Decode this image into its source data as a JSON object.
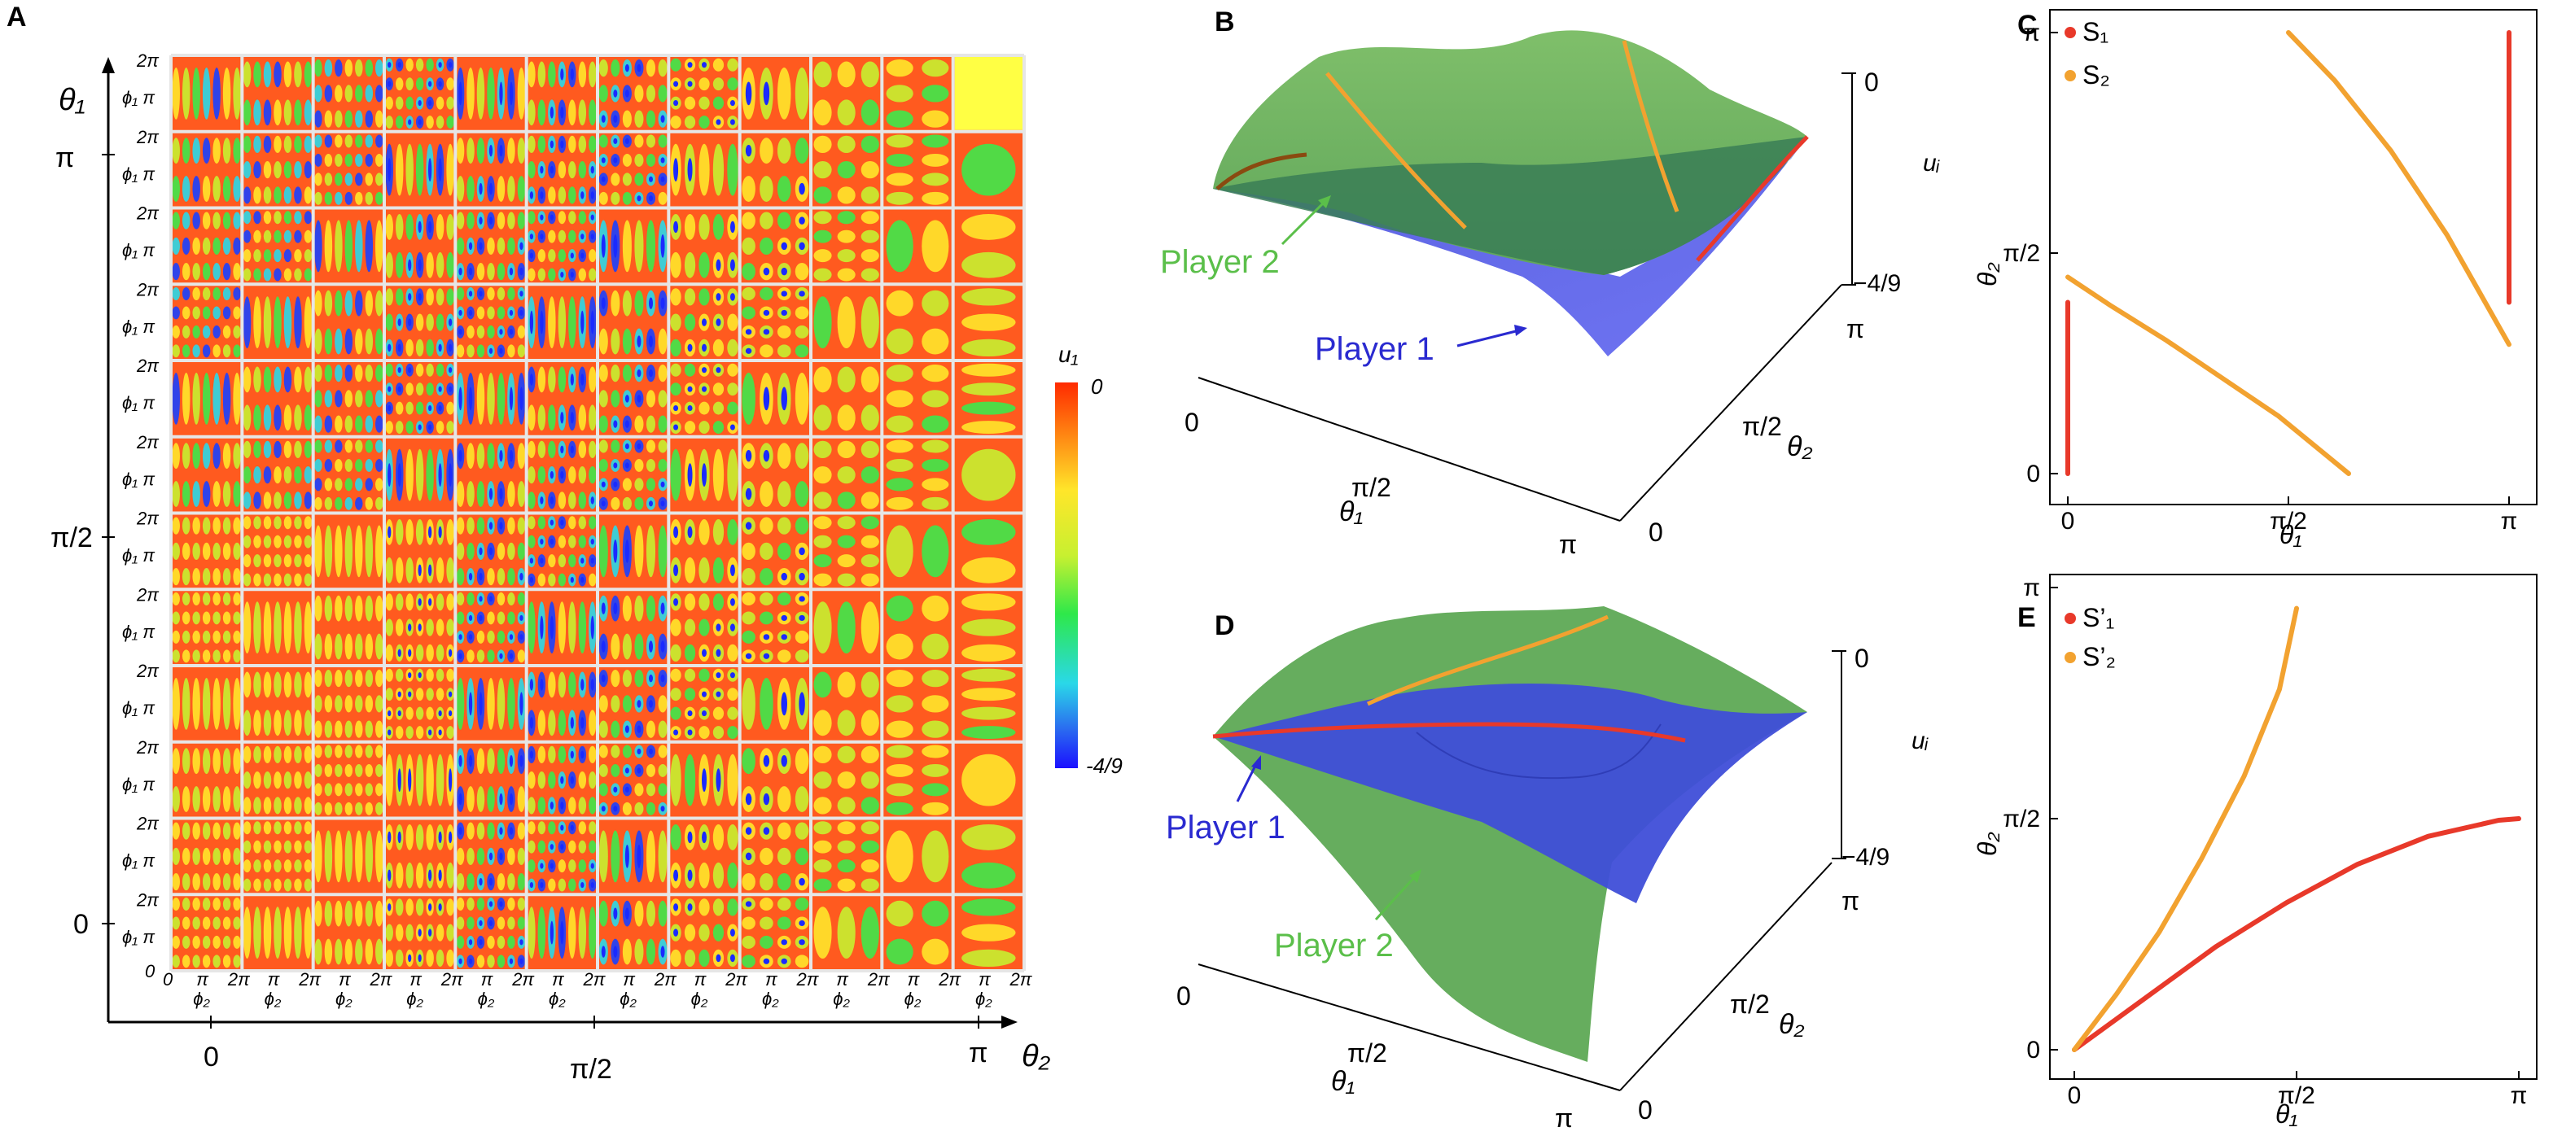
{
  "figure": {
    "panel_labels": [
      "A",
      "B",
      "C",
      "D",
      "E"
    ]
  },
  "panel_a": {
    "y_axis_label": "θ₁",
    "x_axis_label": "θ₂",
    "y_ticks": [
      "π",
      "π/2",
      "0"
    ],
    "x_ticks": [
      "0",
      "π/2",
      "π"
    ],
    "sub_y_labels": [
      "2π",
      "ϕ₁ π",
      "0"
    ],
    "sub_x_labels": [
      "π",
      "2π",
      "ϕ₂"
    ],
    "colorbar": {
      "label": "u₁",
      "top": "0",
      "bottom": "-4/9"
    }
  },
  "panel_b": {
    "z_label": "uᵢ",
    "z_top": "0",
    "z_bottom": "−4/9",
    "x_label": "θ₁",
    "x_ticks": [
      "0",
      "π/2",
      "π"
    ],
    "y_label": "θ₂",
    "y_ticks": [
      "0",
      "π/2",
      "π"
    ],
    "player2_label": "Player 2",
    "player1_label": "Player 1"
  },
  "panel_d": {
    "z_label": "uᵢ",
    "z_top": "0",
    "z_bottom": "−4/9",
    "x_label": "θ₁",
    "x_ticks": [
      "0",
      "π/2",
      "π"
    ],
    "y_label": "θ₂",
    "y_ticks": [
      "0",
      "π/2",
      "π"
    ],
    "player1_label": "Player 1",
    "player2_label": "Player 2"
  },
  "chart_data": [
    {
      "panel": "A",
      "type": "heatmap",
      "title": "",
      "xlabel": "θ₂",
      "ylabel": "θ₁",
      "x_range": [
        0,
        3.1416
      ],
      "y_range": [
        0,
        3.1416
      ],
      "grid_cells": [
        12,
        12
      ],
      "colorbar": {
        "label": "u₁",
        "range": [
          -0.4444,
          0
        ],
        "tick_labels": [
          "0",
          "-4/9"
        ]
      }
    },
    {
      "panel": "C",
      "type": "line",
      "xlabel": "θ₁",
      "ylabel": "θ₂",
      "xlim": [
        0,
        3.1416
      ],
      "ylim": [
        0,
        3.1416
      ],
      "x_tick_labels": [
        "0",
        "π/2",
        "π"
      ],
      "y_tick_labels": [
        "0",
        "π/2",
        "π"
      ],
      "legend": [
        "S₁",
        "S₂"
      ],
      "series": [
        {
          "name": "S₁",
          "color": "#e8392a",
          "segments": [
            [
              [
                0,
                0
              ],
              [
                0,
                1.22
              ]
            ],
            [
              [
                3.1416,
                1.22
              ],
              [
                3.1416,
                3.1416
              ]
            ]
          ]
        },
        {
          "name": "S₂",
          "color": "#f2a230",
          "segments": [
            [
              [
                0,
                1.4
              ],
              [
                0.3,
                1.2
              ],
              [
                0.7,
                0.95
              ],
              [
                1.1,
                0.68
              ],
              [
                1.5,
                0.41
              ],
              [
                2.0,
                0.0
              ]
            ],
            [
              [
                1.5708,
                3.1416
              ],
              [
                1.9,
                2.8
              ],
              [
                2.3,
                2.3
              ],
              [
                2.7,
                1.7
              ],
              [
                3.1416,
                0.92
              ]
            ]
          ]
        }
      ]
    },
    {
      "panel": "E",
      "type": "line",
      "xlabel": "θ₁",
      "ylabel": "θ₂",
      "xlim": [
        0,
        3.1416
      ],
      "ylim": [
        0,
        3.1416
      ],
      "x_tick_labels": [
        "0",
        "π/2",
        "π"
      ],
      "y_tick_labels": [
        "0",
        "π/2",
        "π"
      ],
      "legend": [
        "S’₁",
        "S’₂"
      ],
      "series": [
        {
          "name": "S’₁",
          "color": "#e8392a",
          "points": [
            [
              0,
              0
            ],
            [
              0.5,
              0.35
            ],
            [
              1.0,
              0.7
            ],
            [
              1.5,
              1.0
            ],
            [
              2.0,
              1.26
            ],
            [
              2.5,
              1.45
            ],
            [
              3.0,
              1.56
            ],
            [
              3.1416,
              1.571
            ]
          ]
        },
        {
          "name": "S’₂",
          "color": "#f2a230",
          "points": [
            [
              0,
              0
            ],
            [
              0.3,
              0.38
            ],
            [
              0.6,
              0.8
            ],
            [
              0.9,
              1.3
            ],
            [
              1.2,
              1.86
            ],
            [
              1.45,
              2.45
            ],
            [
              1.5708,
              3.0
            ]
          ]
        }
      ]
    }
  ]
}
